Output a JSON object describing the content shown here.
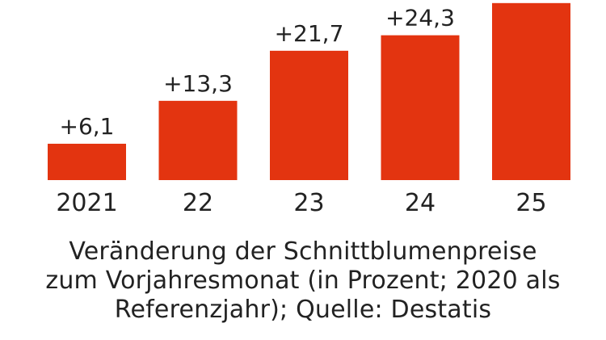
{
  "chart_data": {
    "type": "bar",
    "categories": [
      "2021",
      "22",
      "23",
      "24",
      "25"
    ],
    "values": [
      6.1,
      13.3,
      21.7,
      24.3,
      29.7
    ],
    "value_labels": [
      "+6,1",
      "+13,3",
      "+21,7",
      "+24,3",
      ""
    ],
    "title": "",
    "xlabel": "",
    "ylabel": "",
    "ylim": [
      0,
      30
    ],
    "bar_color": "#e33410",
    "grid": false
  },
  "caption": {
    "lines": [
      "Veränderung der Schnittblumenpreise",
      "zum Vorjahresmonat (in Prozent; 2020 als",
      "Referenzjahr); Quelle: Destatis"
    ]
  }
}
